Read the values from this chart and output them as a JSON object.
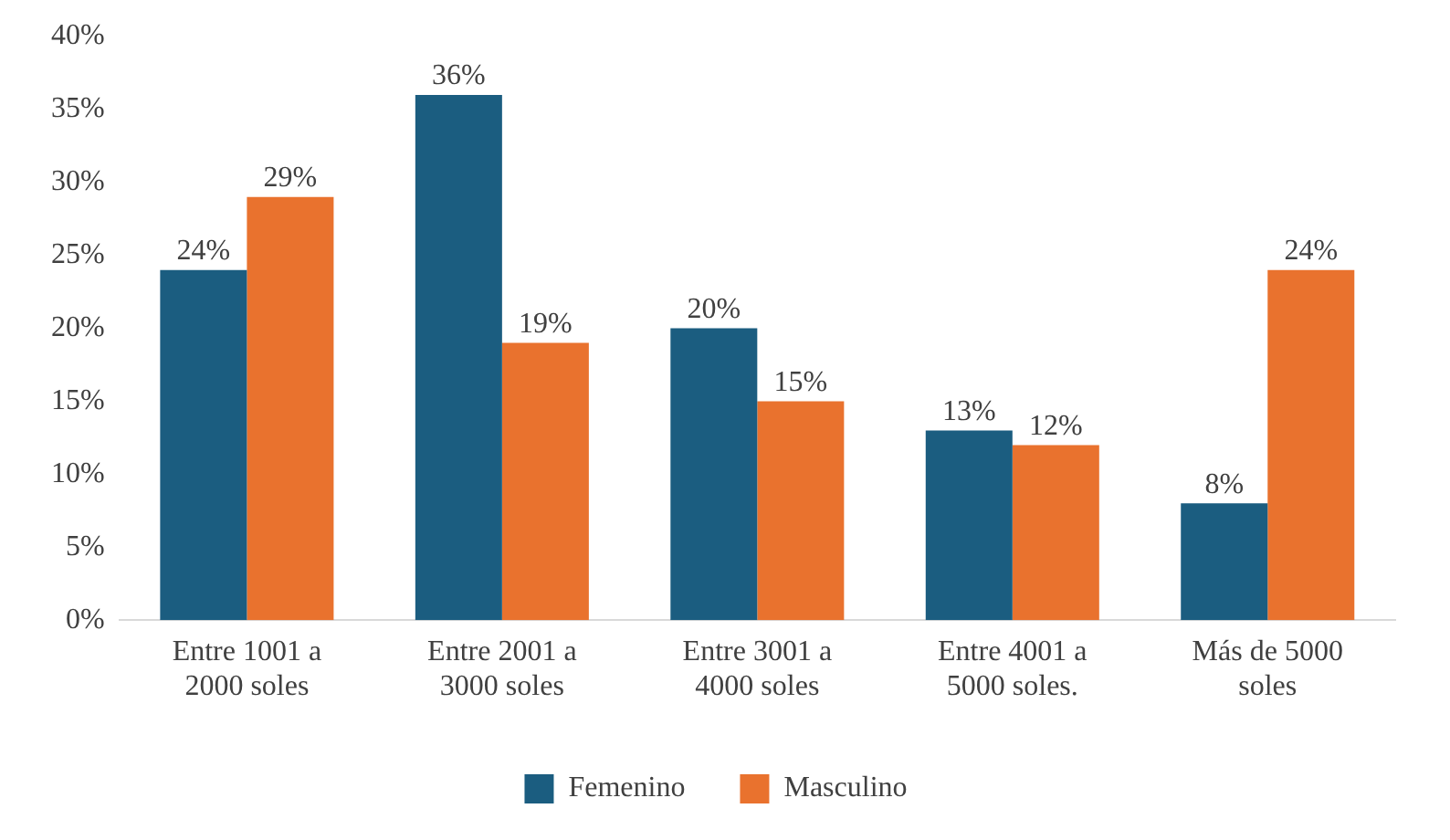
{
  "chart_data": {
    "type": "bar",
    "categories": [
      "Entre 1001 a 2000 soles",
      "Entre 2001 a 3000 soles",
      "Entre 3001 a 4000 soles",
      "Entre 4001 a 5000 soles.",
      "Más de 5000 soles"
    ],
    "series": [
      {
        "name": "Femenino",
        "color": "#1b5d80",
        "values": [
          24,
          36,
          20,
          13,
          8
        ],
        "value_labels": [
          "24%",
          "36%",
          "20%",
          "13%",
          "8%"
        ]
      },
      {
        "name": "Masculino",
        "color": "#e9722e",
        "values": [
          29,
          19,
          15,
          12,
          24
        ],
        "value_labels": [
          "29%",
          "19%",
          "15%",
          "12%",
          "24%"
        ]
      }
    ],
    "ylim": [
      0,
      40
    ],
    "yticks": [
      {
        "value": 0,
        "label": "0%"
      },
      {
        "value": 5,
        "label": "5%"
      },
      {
        "value": 10,
        "label": "10%"
      },
      {
        "value": 15,
        "label": "15%"
      },
      {
        "value": 20,
        "label": "20%"
      },
      {
        "value": 25,
        "label": "25%"
      },
      {
        "value": 30,
        "label": "30%"
      },
      {
        "value": 35,
        "label": "35%"
      },
      {
        "value": 40,
        "label": "40%"
      }
    ],
    "grid": false,
    "legend": "bottom"
  }
}
